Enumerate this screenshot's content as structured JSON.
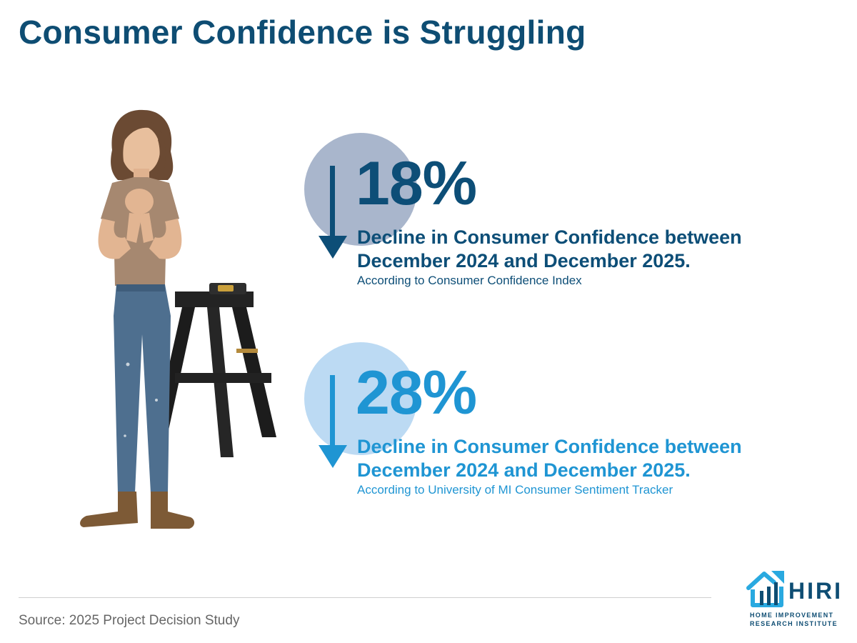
{
  "title": "Consumer Confidence is Struggling",
  "illustration": {
    "subject": "worried woman standing beside a sawhorse workbench"
  },
  "stats": [
    {
      "value": "18%",
      "description": "Decline in Consumer Confidence between December 2024 and December 2025.",
      "note": "According to Consumer Confidence Index",
      "icon": "arrow-down-icon",
      "color": "#0d4e77",
      "circle_color": "#a9b6cc"
    },
    {
      "value": "28%",
      "description": "Decline in Consumer Confidence between December 2024 and December 2025.",
      "note": "According to University of MI Consumer Sentiment Tracker",
      "icon": "arrow-down-icon",
      "color": "#1f95d3",
      "circle_color": "#bcdaf3"
    }
  ],
  "source": "Source: 2025 Project Decision Study",
  "logo": {
    "name": "HIRI",
    "line1": "HOME IMPROVEMENT",
    "line2": "RESEARCH INSTITUTE",
    "icon": "house-icon",
    "colors": {
      "primary": "#0e4d73",
      "accent": "#29a9e0"
    }
  }
}
